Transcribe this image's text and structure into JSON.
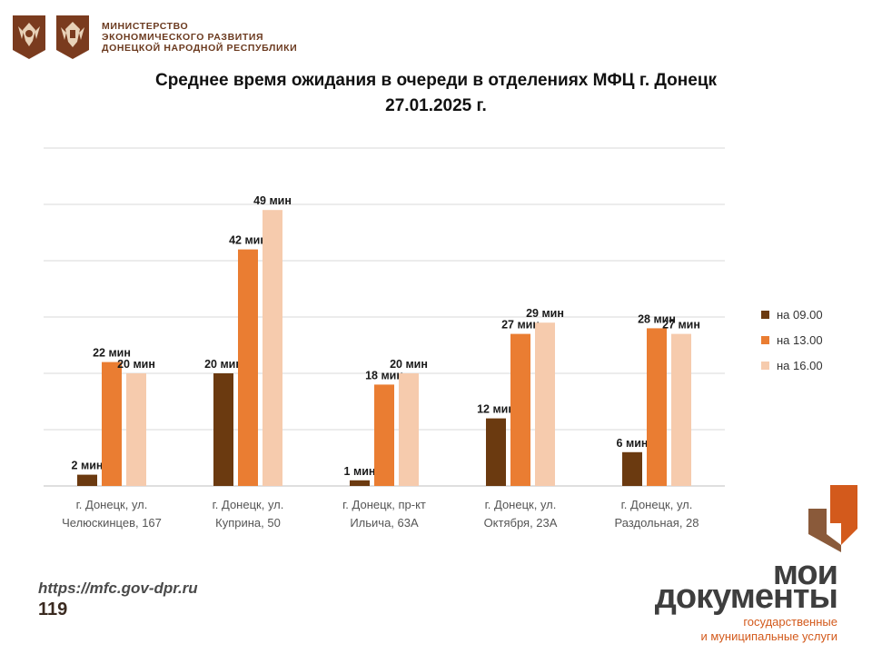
{
  "header": {
    "ministry_lines": [
      "МИНИСТЕРСТВО",
      "ЭКОНОМИЧЕСКОГО РАЗВИТИЯ",
      "ДОНЕЦКОЙ НАРОДНОЙ РЕСПУБЛИКИ"
    ]
  },
  "title_line1": "Среднее время ожидания в очереди в отделениях МФЦ г. Донецк",
  "title_line2": "27.01.2025 г.",
  "chart_data": {
    "type": "bar",
    "title": "Среднее время ожидания в очереди в отделениях МФЦ г. Донецк 27.01.2025 г.",
    "categories": [
      [
        "г. Донецк, ул.",
        "Челюскинцев, 167"
      ],
      [
        "г. Донецк, ул.",
        "Куприна, 50"
      ],
      [
        "г. Донецк, пр-кт",
        "Ильича, 63А"
      ],
      [
        "г. Донецк, ул.",
        "Октября, 23А"
      ],
      [
        "г. Донецк, ул.",
        "Раздольная, 28"
      ]
    ],
    "series": [
      {
        "name": "на 09.00",
        "color": "#6b3a10",
        "values": [
          2,
          20,
          1,
          12,
          6
        ]
      },
      {
        "name": "на 13.00",
        "color": "#ea7d32",
        "values": [
          22,
          42,
          18,
          27,
          28
        ]
      },
      {
        "name": "на 16.00",
        "color": "#f6cbad",
        "values": [
          20,
          49,
          20,
          29,
          27
        ]
      }
    ],
    "value_suffix": " мин",
    "ylim": [
      0,
      60
    ],
    "grid": true,
    "legend": "right"
  },
  "footer": {
    "url": "https://mfc.gov-dpr.ru",
    "page": "119"
  },
  "brand": {
    "line1": "мои",
    "line2": "документы",
    "line3": "государственные",
    "line4": "и муниципальные услуги",
    "accent": "#d35a1c"
  }
}
